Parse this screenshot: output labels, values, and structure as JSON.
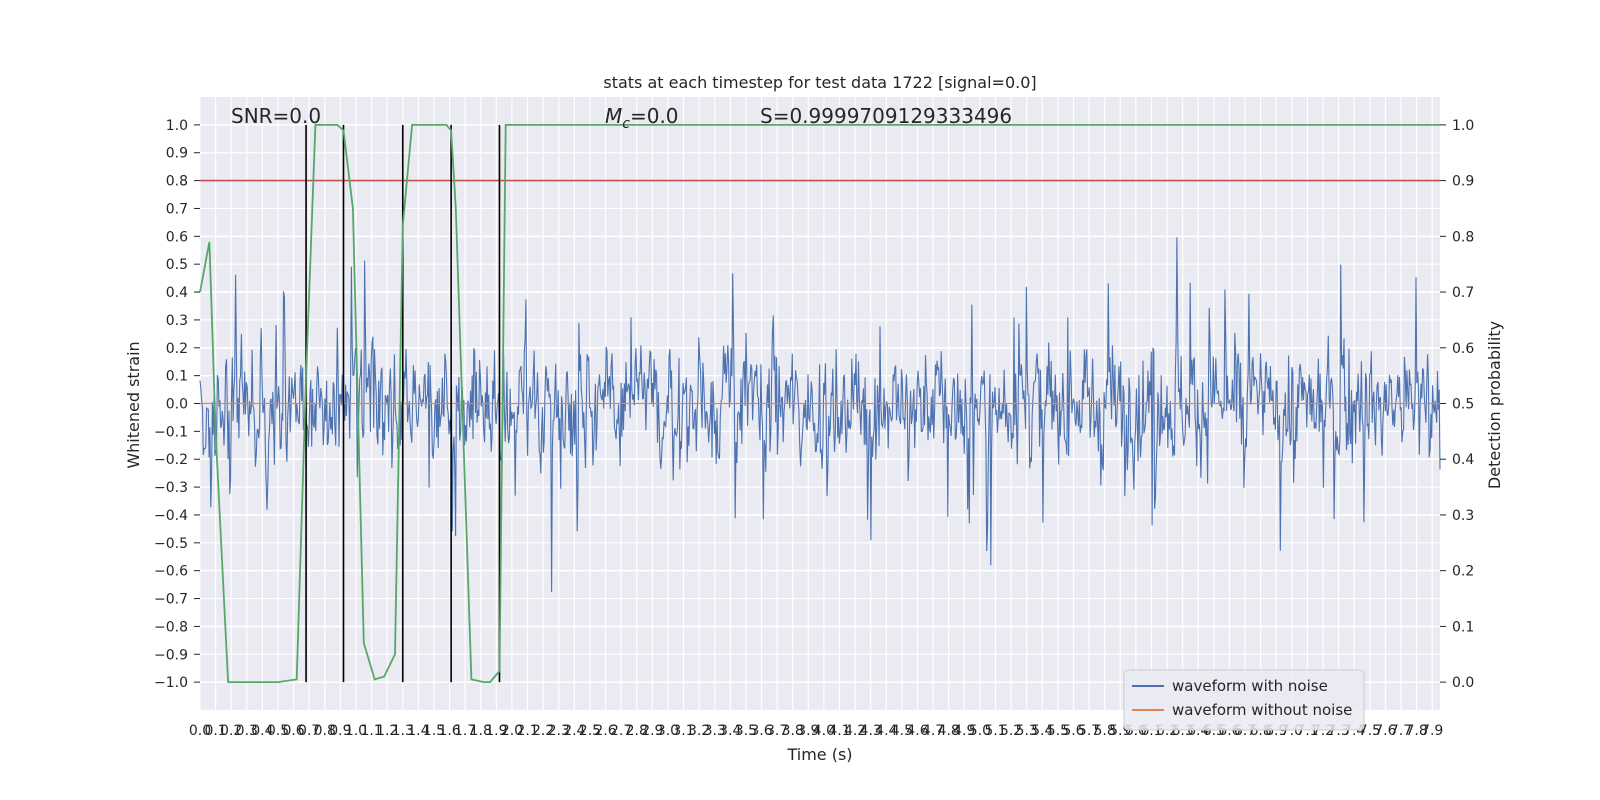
{
  "chart_data": {
    "type": "line",
    "title": "stats at each timestep for test data 1722 [signal=0.0]",
    "xlabel": "Time (s)",
    "ylabel": "Whitened strain",
    "y2label": "Detection probability",
    "xlim": [
      0.0,
      7.95
    ],
    "ylim": [
      -1.1,
      1.1
    ],
    "y2lim": [
      -0.05,
      1.05
    ],
    "x_ticks": [
      "0.0",
      "0.1",
      "0.2",
      "0.3",
      "0.4",
      "0.5",
      "0.6",
      "0.7",
      "0.8",
      "0.9",
      "1.0",
      "1.1",
      "1.2",
      "1.3",
      "1.4",
      "1.5",
      "1.6",
      "1.7",
      "1.8",
      "1.9",
      "2.0",
      "2.1",
      "2.2",
      "2.3",
      "2.4",
      "2.5",
      "2.6",
      "2.7",
      "2.8",
      "2.9",
      "3.0",
      "3.1",
      "3.2",
      "3.3",
      "3.4",
      "3.5",
      "3.6",
      "3.7",
      "3.8",
      "3.9",
      "4.0",
      "4.1",
      "4.2",
      "4.3",
      "4.4",
      "4.5",
      "4.6",
      "4.7",
      "4.8",
      "4.9",
      "5.0",
      "5.1",
      "5.2",
      "5.3",
      "5.4",
      "5.5",
      "5.6",
      "5.7",
      "5.8",
      "5.9",
      "6.0",
      "6.1",
      "6.2",
      "6.3",
      "6.4",
      "6.5",
      "6.6",
      "6.7",
      "6.8",
      "6.9",
      "7.0",
      "7.1",
      "7.2",
      "7.3",
      "7.4",
      "7.5",
      "7.6",
      "7.7",
      "7.8",
      "7.9"
    ],
    "y_ticks": [
      "−1.0",
      "−0.9",
      "−0.8",
      "−0.7",
      "−0.6",
      "−0.5",
      "−0.4",
      "−0.3",
      "−0.2",
      "−0.1",
      "0.0",
      "0.1",
      "0.2",
      "0.3",
      "0.4",
      "0.5",
      "0.6",
      "0.7",
      "0.8",
      "0.9",
      "1.0"
    ],
    "y2_ticks": [
      "0.0",
      "0.1",
      "0.2",
      "0.3",
      "0.4",
      "0.5",
      "0.6",
      "0.7",
      "0.8",
      "0.9",
      "1.0"
    ],
    "annotations": {
      "snr": "SNR=0.0",
      "mc_symbol": "M",
      "mc_sub": "c",
      "mc_value": "=0.0",
      "s": "S=0.9999709129333496"
    },
    "threshold": {
      "y2": 0.9,
      "color": "#c44e52"
    },
    "vertical_markers_x": [
      0.68,
      0.92,
      1.3,
      1.61,
      1.92
    ],
    "series": [
      {
        "name": "waveform with noise",
        "color": "#4c72b0",
        "envelope_typical": 0.45,
        "envelope_max": 0.95
      },
      {
        "name": "waveform without noise",
        "color": "#dd8452",
        "value": 0.0
      },
      {
        "color": "#55a868",
        "axis": "y2",
        "x": [
          0.0,
          0.06,
          0.1,
          0.18,
          0.5,
          0.62,
          0.68,
          0.74,
          0.88,
          0.92,
          0.98,
          1.05,
          1.12,
          1.18,
          1.25,
          1.3,
          1.36,
          1.46,
          1.58,
          1.61,
          1.64,
          1.74,
          1.82,
          1.86,
          1.92,
          1.96,
          2.02,
          2.08,
          7.95
        ],
        "y": [
          0.7,
          0.79,
          0.45,
          0.0,
          0.0,
          0.005,
          0.55,
          1.0,
          1.0,
          0.99,
          0.85,
          0.07,
          0.005,
          0.01,
          0.05,
          0.82,
          1.0,
          1.0,
          1.0,
          0.99,
          0.85,
          0.005,
          0.0,
          0.0,
          0.02,
          1.0,
          1.0,
          1.0,
          1.0
        ]
      }
    ]
  }
}
